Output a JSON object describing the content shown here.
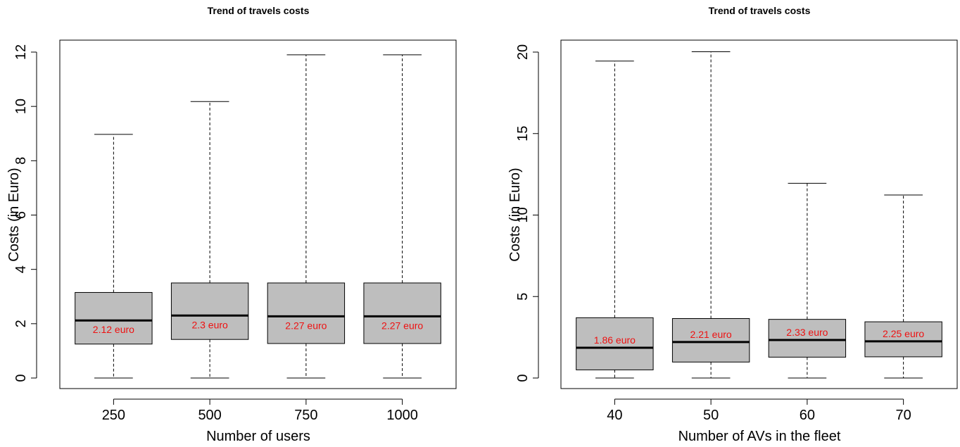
{
  "chart_data": [
    {
      "type": "boxplot",
      "title": "Trend of travels costs",
      "xlabel": "Number of users",
      "ylabel": "Costs (in Euro)",
      "ylim": [
        0,
        12
      ],
      "yticks": [
        0,
        2,
        4,
        6,
        8,
        10,
        12
      ],
      "ytick_labels": [
        "0",
        "2",
        "4",
        "6",
        "8",
        "10",
        "12"
      ],
      "box_color": "#bebebe",
      "median_label_color": "#ee1111",
      "categories": [
        "250",
        "500",
        "750",
        "1000"
      ],
      "boxes": [
        {
          "category": "250",
          "min": 0,
          "q1": 1.25,
          "median": 2.12,
          "q3": 3.15,
          "max": 8.97,
          "label": "2.12 euro"
        },
        {
          "category": "500",
          "min": 0,
          "q1": 1.42,
          "median": 2.3,
          "q3": 3.5,
          "max": 10.18,
          "label": "2.3 euro"
        },
        {
          "category": "750",
          "min": 0,
          "q1": 1.27,
          "median": 2.27,
          "q3": 3.5,
          "max": 11.9,
          "label": "2.27 euro"
        },
        {
          "category": "1000",
          "min": 0,
          "q1": 1.27,
          "median": 2.27,
          "q3": 3.5,
          "max": 11.9,
          "label": "2.27 euro"
        }
      ]
    },
    {
      "type": "boxplot",
      "title": "Trend of travels costs",
      "xlabel": "Number of AVs in the fleet",
      "ylabel": "Costs (in Euro)",
      "ylim": [
        0,
        20
      ],
      "yticks": [
        0,
        5,
        10,
        15,
        20
      ],
      "ytick_labels": [
        "0",
        "5",
        "10",
        "15",
        "20"
      ],
      "box_color": "#bebebe",
      "median_label_color": "#ee1111",
      "categories": [
        "40",
        "50",
        "60",
        "70"
      ],
      "boxes": [
        {
          "category": "40",
          "min": 0,
          "q1": 0.5,
          "median": 1.86,
          "q3": 3.7,
          "max": 19.45,
          "label": "1.86 euro"
        },
        {
          "category": "50",
          "min": 0,
          "q1": 0.98,
          "median": 2.21,
          "q3": 3.65,
          "max": 20.02,
          "label": "2.21 euro"
        },
        {
          "category": "60",
          "min": 0,
          "q1": 1.28,
          "median": 2.33,
          "q3": 3.6,
          "max": 11.95,
          "label": "2.33 euro"
        },
        {
          "category": "70",
          "min": 0,
          "q1": 1.3,
          "median": 2.25,
          "q3": 3.45,
          "max": 11.23,
          "label": "2.25 euro"
        }
      ]
    }
  ]
}
